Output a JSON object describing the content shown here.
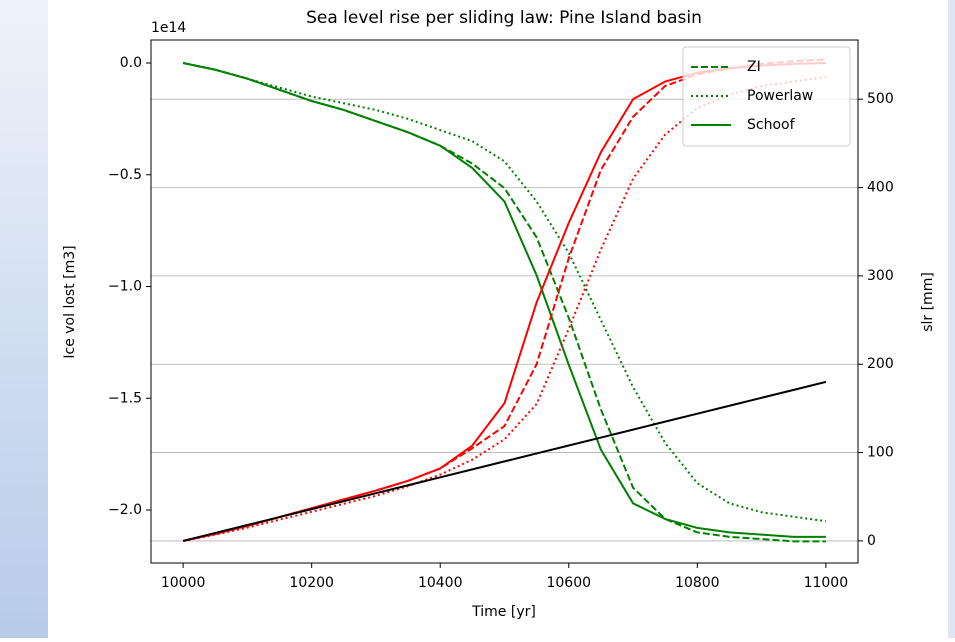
{
  "chart_data": {
    "type": "line",
    "title": "Sea level rise per sliding law: Pine Island basin",
    "x_label": "Time [yr]",
    "y_label": "Ice vol lost [m3]",
    "y2_label": "slr [mm]",
    "y_offset_label": "1e14",
    "y_label_color": "#008000",
    "y2_label_color": "#ff0000",
    "x": [
      10000,
      10050,
      10100,
      10150,
      10200,
      10250,
      10300,
      10350,
      10400,
      10450,
      10500,
      10550,
      10600,
      10650,
      10700,
      10750,
      10800,
      10850,
      10900,
      10950,
      11000
    ],
    "xlim": [
      9950,
      11050
    ],
    "xticks": [
      10000,
      10200,
      10400,
      10600,
      10800,
      11000
    ],
    "ylim": [
      -2.237,
      0.103
    ],
    "yticks": [
      {
        "value": 0,
        "label": "0.0"
      },
      {
        "value": -0.5,
        "label": "−0.5"
      },
      {
        "value": -1.0,
        "label": "−1.0"
      },
      {
        "value": -1.5,
        "label": "−1.5"
      },
      {
        "value": -2.0,
        "label": "−2.0"
      }
    ],
    "y2lim": [
      -25,
      567
    ],
    "y2ticks": [
      0,
      100,
      200,
      300,
      400,
      500
    ],
    "grid": "y2",
    "legend": "upper right",
    "series": [
      {
        "name": "ZI",
        "color": "#008000",
        "linestyle": "dashed",
        "values": [
          0,
          -0.03,
          -0.07,
          -0.12,
          -0.17,
          -0.21,
          -0.26,
          -0.31,
          -0.37,
          -0.45,
          -0.56,
          -0.78,
          -1.14,
          -1.55,
          -1.9,
          -2.04,
          -2.1,
          -2.12,
          -2.13,
          -2.14,
          -2.14
        ]
      },
      {
        "name": "Powerlaw",
        "color": "#008000",
        "linestyle": "dotted",
        "values": [
          0,
          -0.03,
          -0.07,
          -0.11,
          -0.15,
          -0.18,
          -0.21,
          -0.25,
          -0.3,
          -0.35,
          -0.44,
          -0.62,
          -0.85,
          -1.15,
          -1.45,
          -1.7,
          -1.88,
          -1.97,
          -2.01,
          -2.03,
          -2.05
        ]
      },
      {
        "name": "Schoof",
        "color": "#008000",
        "linestyle": "solid",
        "values": [
          0,
          -0.03,
          -0.07,
          -0.12,
          -0.17,
          -0.21,
          -0.26,
          -0.31,
          -0.37,
          -0.47,
          -0.62,
          -0.95,
          -1.35,
          -1.73,
          -1.97,
          -2.04,
          -2.08,
          -2.1,
          -2.11,
          -2.12,
          -2.12
        ]
      },
      {
        "color": "#ff0000",
        "linestyle": "dashed",
        "axis": "y2",
        "values": [
          0,
          8,
          17,
          27,
          37,
          47,
          57,
          68,
          82,
          105,
          130,
          200,
          320,
          420,
          480,
          515,
          528,
          535,
          540,
          543,
          545
        ]
      },
      {
        "color": "#ff0000",
        "linestyle": "dotted",
        "axis": "y2",
        "values": [
          0,
          7,
          15,
          24,
          33,
          42,
          51,
          62,
          75,
          92,
          115,
          155,
          240,
          330,
          410,
          460,
          490,
          505,
          515,
          520,
          525
        ]
      },
      {
        "color": "#ff0000",
        "linestyle": "solid",
        "axis": "y2",
        "values": [
          0,
          8,
          17,
          27,
          37,
          47,
          57,
          68,
          82,
          108,
          156,
          270,
          360,
          440,
          500,
          520,
          530,
          535,
          538,
          540,
          541
        ]
      },
      {
        "color": "#000000",
        "linestyle": "solid",
        "axis": "y2",
        "values": [
          0,
          9,
          18,
          27,
          36,
          45,
          54,
          63,
          72,
          81,
          90,
          99,
          108,
          117,
          126,
          135,
          144,
          153,
          162,
          171,
          180
        ]
      }
    ]
  }
}
